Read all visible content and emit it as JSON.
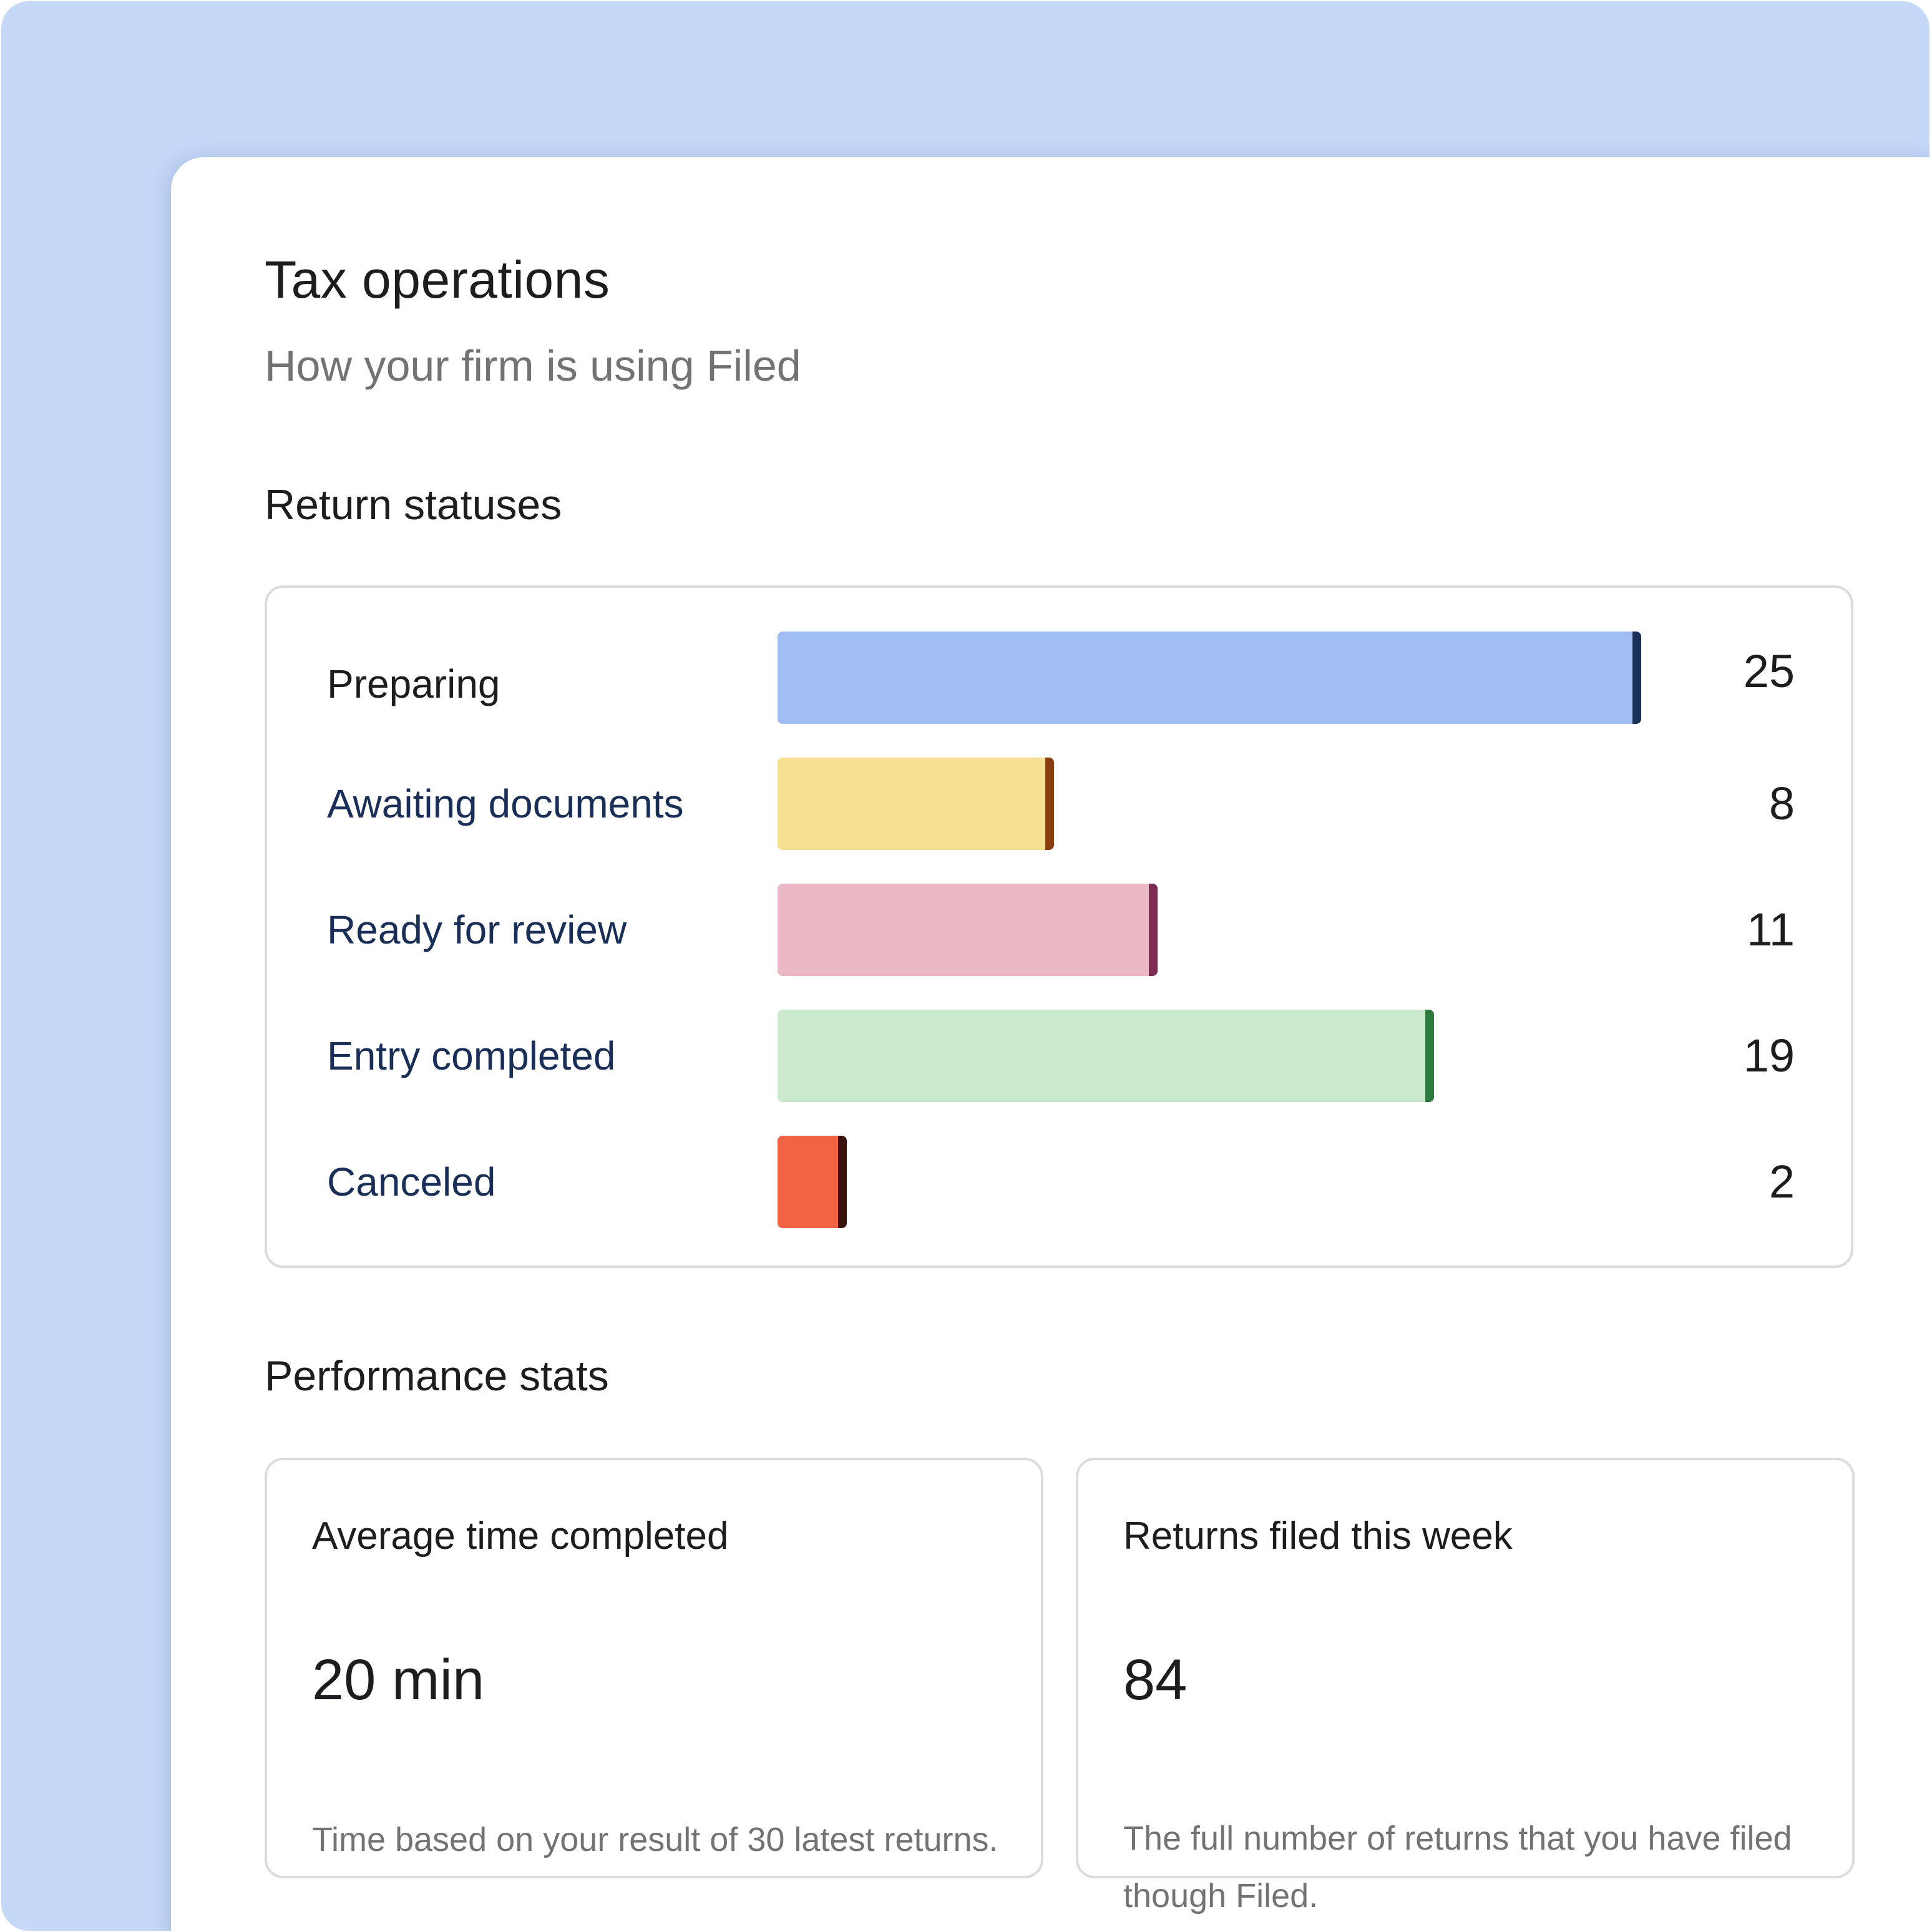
{
  "header": {
    "title": "Tax operations",
    "subtitle": "How your firm is using Filed"
  },
  "return_statuses": {
    "title": "Return statuses",
    "items": [
      {
        "label": "Preparing",
        "count": "25",
        "value": 25,
        "fill": "#9fbcf3",
        "edge": "#1a2f58"
      },
      {
        "label": "Awaiting documents",
        "count": "8",
        "value": 8,
        "fill": "#f7df91",
        "edge": "#8a3d0f"
      },
      {
        "label": "Ready for review",
        "count": "11",
        "value": 11,
        "fill": "#ebb8c6",
        "edge": "#7f2c54"
      },
      {
        "label": "Entry completed",
        "count": "19",
        "value": 19,
        "fill": "#cbe9cc",
        "edge": "#2e7a3c"
      },
      {
        "label": "Canceled",
        "count": "2",
        "value": 2,
        "fill": "#f06443",
        "edge": "#3a120c"
      }
    ]
  },
  "performance": {
    "title": "Performance stats",
    "cards": [
      {
        "label": "Average time completed",
        "value": "20 min",
        "description": "Time based on your result of 30 latest returns."
      },
      {
        "label": "Returns filed this week",
        "value": "84",
        "description": "The full number of returns that you have filed though Filed."
      }
    ]
  }
}
